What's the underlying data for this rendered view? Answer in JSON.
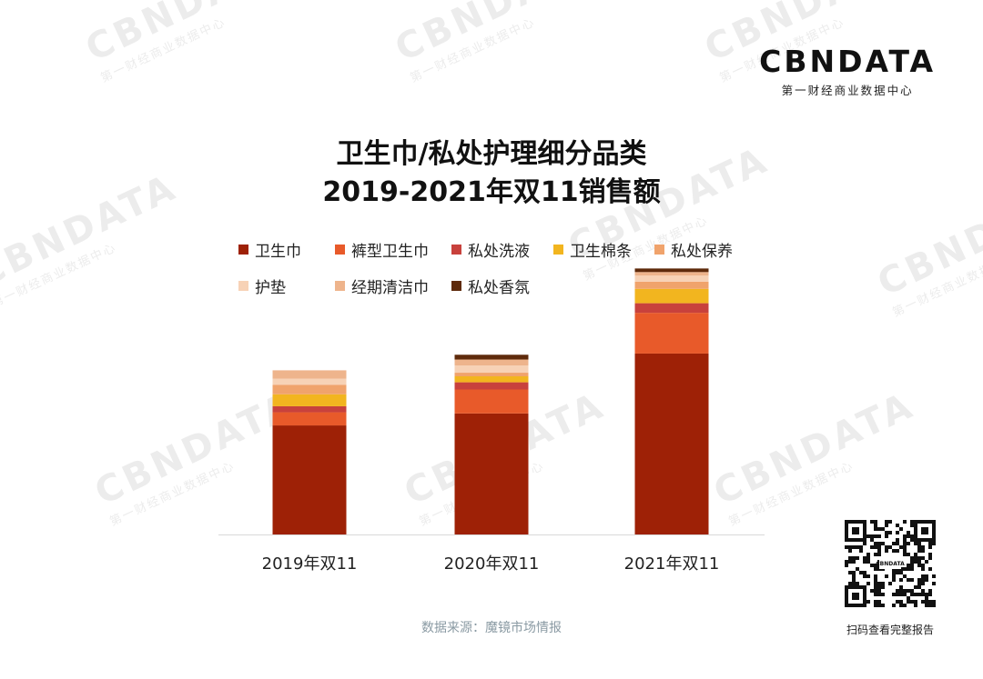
{
  "logo": {
    "wordmark": "CBNDATA",
    "subtitle": "第一财经商业数据中心"
  },
  "title": {
    "line1": "卫生巾/私处护理细分品类",
    "line2": "2019-2021年双11销售额"
  },
  "source": "数据来源：魔镜市场情报",
  "qr_caption": "扫码查看完整报告",
  "chart_data": {
    "type": "bar",
    "stacked": true,
    "title": "卫生巾/私处护理细分品类 2019-2021年双11销售额",
    "categories": [
      "2019年双11",
      "2020年双11",
      "2021年双11"
    ],
    "series": [
      {
        "name": "卫生巾",
        "color": "#9e2106",
        "values": [
          91,
          101,
          151
        ]
      },
      {
        "name": "裤型卫生巾",
        "color": "#e85a2a",
        "values": [
          11,
          20,
          34
        ]
      },
      {
        "name": "私处洗液",
        "color": "#c8413c",
        "values": [
          5,
          6,
          8
        ]
      },
      {
        "name": "卫生棉条",
        "color": "#f2b51f",
        "values": [
          10,
          5,
          12
        ]
      },
      {
        "name": "私处保养",
        "color": "#f0a36c",
        "values": [
          8,
          3,
          6
        ]
      },
      {
        "name": "护垫",
        "color": "#f7d2b6",
        "values": [
          5,
          6,
          5
        ]
      },
      {
        "name": "经期清洁巾",
        "color": "#eeb48c",
        "values": [
          7,
          5,
          3
        ]
      },
      {
        "name": "私处香氛",
        "color": "#5e2a0b",
        "values": [
          0,
          4,
          3
        ]
      }
    ],
    "ylim": [
      0,
      220
    ],
    "y_axis_shown": false,
    "grid": false,
    "legend_position": "top"
  }
}
